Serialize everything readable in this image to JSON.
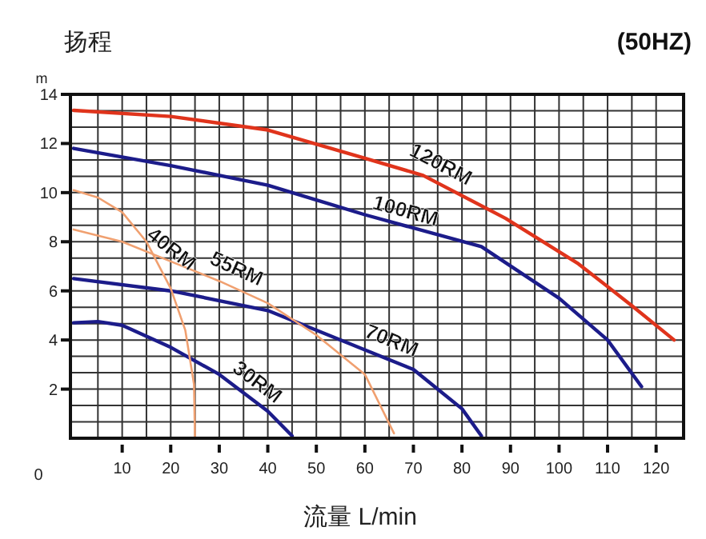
{
  "chart_data": {
    "type": "line",
    "title": "(50HZ)",
    "ylabel": "扬程",
    "xlabel": "流量 L/min",
    "annotations": [
      "m",
      "0"
    ],
    "xlim": [
      0,
      125
    ],
    "xticks": [
      10,
      20,
      30,
      40,
      50,
      60,
      70,
      80,
      90,
      100,
      110,
      120
    ],
    "ylim": [
      0,
      14
    ],
    "yticks": [
      2,
      4,
      6,
      8,
      10,
      12,
      14
    ],
    "grid": true,
    "marker": "none",
    "line_style": "solid",
    "series": [
      {
        "name": "120RM",
        "color": "#e0341c",
        "x": [
          0,
          20,
          40,
          60,
          72,
          89,
          104,
          115,
          123.7
        ],
        "values": [
          13.35,
          13.1,
          12.55,
          11.4,
          10.7,
          8.95,
          7.1,
          5.4,
          4.0
        ]
      },
      {
        "name": "100RM",
        "color": "#1c1c8a",
        "x": [
          0,
          20,
          40,
          60,
          84,
          100,
          110,
          117
        ],
        "values": [
          11.8,
          11.1,
          10.3,
          9.1,
          7.8,
          5.7,
          4.0,
          2.1
        ]
      },
      {
        "name": "70RM",
        "color": "#1c1c8a",
        "x": [
          0,
          20,
          40,
          60,
          70,
          80,
          84
        ],
        "values": [
          6.5,
          6.0,
          5.2,
          3.6,
          2.8,
          1.2,
          0.1
        ]
      },
      {
        "name": "30RM",
        "color": "#1c1c8a",
        "x": [
          0,
          5,
          10,
          20,
          30,
          40,
          45
        ],
        "values": [
          4.7,
          4.75,
          4.6,
          3.7,
          2.6,
          1.1,
          0.1
        ]
      },
      {
        "name": "40RM",
        "color": "#f0a070",
        "x": [
          0,
          5,
          10,
          15,
          20,
          23,
          24.8,
          25
        ],
        "values": [
          10.1,
          9.8,
          9.2,
          8.0,
          6.1,
          4.4,
          2.2,
          0
        ]
      },
      {
        "name": "55RM",
        "color": "#f0a070",
        "x": [
          0,
          10,
          20,
          30,
          40,
          50,
          60,
          66
        ],
        "values": [
          8.5,
          8.0,
          7.2,
          6.4,
          5.5,
          4.2,
          2.6,
          0.2
        ]
      }
    ]
  }
}
